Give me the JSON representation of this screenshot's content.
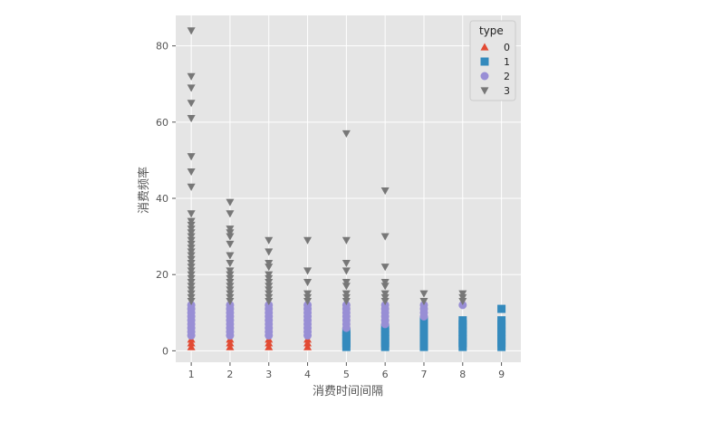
{
  "chart_data": {
    "type": "scatter",
    "title": "",
    "xlabel": "消费时间间隔",
    "ylabel": "消费频率",
    "xlim": [
      0.6,
      9.5
    ],
    "ylim": [
      -3,
      88
    ],
    "xticks": [
      1,
      2,
      3,
      4,
      5,
      6,
      7,
      8,
      9
    ],
    "yticks": [
      0,
      20,
      40,
      60,
      80
    ],
    "grid": true,
    "legend": {
      "title": "type",
      "placement": "top-right"
    },
    "series": [
      {
        "name": "0",
        "marker": "triangle-up",
        "color": "#E24A33",
        "points": [
          [
            1,
            1
          ],
          [
            1,
            2
          ],
          [
            1,
            3
          ],
          [
            2,
            1
          ],
          [
            2,
            2
          ],
          [
            2,
            3
          ],
          [
            3,
            1
          ],
          [
            3,
            2
          ],
          [
            3,
            3
          ],
          [
            4,
            1
          ],
          [
            4,
            2
          ],
          [
            4,
            3
          ]
        ]
      },
      {
        "name": "1",
        "marker": "square",
        "color": "#348ABD",
        "points": [
          [
            5,
            1
          ],
          [
            5,
            2
          ],
          [
            5,
            3
          ],
          [
            5,
            4
          ],
          [
            5,
            5
          ],
          [
            6,
            1
          ],
          [
            6,
            2
          ],
          [
            6,
            3
          ],
          [
            6,
            4
          ],
          [
            6,
            5
          ],
          [
            6,
            6
          ],
          [
            7,
            1
          ],
          [
            7,
            2
          ],
          [
            7,
            3
          ],
          [
            7,
            4
          ],
          [
            7,
            5
          ],
          [
            7,
            6
          ],
          [
            7,
            7
          ],
          [
            7,
            8
          ],
          [
            8,
            1
          ],
          [
            8,
            2
          ],
          [
            8,
            3
          ],
          [
            8,
            4
          ],
          [
            8,
            5
          ],
          [
            8,
            6
          ],
          [
            8,
            7
          ],
          [
            8,
            8
          ],
          [
            9,
            1
          ],
          [
            9,
            2
          ],
          [
            9,
            3
          ],
          [
            9,
            4
          ],
          [
            9,
            5
          ],
          [
            9,
            6
          ],
          [
            9,
            7
          ],
          [
            9,
            8
          ],
          [
            9,
            11
          ]
        ]
      },
      {
        "name": "2",
        "marker": "circle",
        "color": "#988ED5",
        "points": [
          [
            1,
            4
          ],
          [
            1,
            5
          ],
          [
            1,
            6
          ],
          [
            1,
            7
          ],
          [
            1,
            8
          ],
          [
            1,
            9
          ],
          [
            1,
            10
          ],
          [
            1,
            11
          ],
          [
            1,
            12
          ],
          [
            2,
            4
          ],
          [
            2,
            5
          ],
          [
            2,
            6
          ],
          [
            2,
            7
          ],
          [
            2,
            8
          ],
          [
            2,
            9
          ],
          [
            2,
            10
          ],
          [
            2,
            11
          ],
          [
            2,
            12
          ],
          [
            3,
            4
          ],
          [
            3,
            5
          ],
          [
            3,
            6
          ],
          [
            3,
            7
          ],
          [
            3,
            8
          ],
          [
            3,
            9
          ],
          [
            3,
            10
          ],
          [
            3,
            11
          ],
          [
            3,
            12
          ],
          [
            4,
            4
          ],
          [
            4,
            5
          ],
          [
            4,
            6
          ],
          [
            4,
            7
          ],
          [
            4,
            8
          ],
          [
            4,
            9
          ],
          [
            4,
            10
          ],
          [
            4,
            11
          ],
          [
            4,
            12
          ],
          [
            5,
            6
          ],
          [
            5,
            7
          ],
          [
            5,
            8
          ],
          [
            5,
            9
          ],
          [
            5,
            10
          ],
          [
            5,
            11
          ],
          [
            5,
            12
          ],
          [
            6,
            7
          ],
          [
            6,
            8
          ],
          [
            6,
            9
          ],
          [
            6,
            10
          ],
          [
            6,
            11
          ],
          [
            6,
            12
          ],
          [
            7,
            9
          ],
          [
            7,
            10
          ],
          [
            7,
            11
          ],
          [
            7,
            12
          ],
          [
            8,
            12
          ]
        ]
      },
      {
        "name": "3",
        "marker": "triangle-down",
        "color": "#777777",
        "points": [
          [
            1,
            13
          ],
          [
            1,
            14
          ],
          [
            1,
            15
          ],
          [
            1,
            16
          ],
          [
            1,
            17
          ],
          [
            1,
            18
          ],
          [
            1,
            19
          ],
          [
            1,
            20
          ],
          [
            1,
            21
          ],
          [
            1,
            22
          ],
          [
            1,
            23
          ],
          [
            1,
            24
          ],
          [
            1,
            25
          ],
          [
            1,
            26
          ],
          [
            1,
            27
          ],
          [
            1,
            28
          ],
          [
            1,
            29
          ],
          [
            1,
            30
          ],
          [
            1,
            31
          ],
          [
            1,
            32
          ],
          [
            1,
            33
          ],
          [
            1,
            34
          ],
          [
            1,
            36
          ],
          [
            1,
            43
          ],
          [
            1,
            47
          ],
          [
            1,
            51
          ],
          [
            1,
            61
          ],
          [
            1,
            65
          ],
          [
            1,
            69
          ],
          [
            1,
            72
          ],
          [
            1,
            84
          ],
          [
            2,
            13
          ],
          [
            2,
            14
          ],
          [
            2,
            15
          ],
          [
            2,
            16
          ],
          [
            2,
            17
          ],
          [
            2,
            18
          ],
          [
            2,
            19
          ],
          [
            2,
            20
          ],
          [
            2,
            21
          ],
          [
            2,
            23
          ],
          [
            2,
            25
          ],
          [
            2,
            28
          ],
          [
            2,
            30
          ],
          [
            2,
            31
          ],
          [
            2,
            32
          ],
          [
            2,
            36
          ],
          [
            2,
            39
          ],
          [
            3,
            13
          ],
          [
            3,
            14
          ],
          [
            3,
            15
          ],
          [
            3,
            16
          ],
          [
            3,
            17
          ],
          [
            3,
            18
          ],
          [
            3,
            19
          ],
          [
            3,
            20
          ],
          [
            3,
            22
          ],
          [
            3,
            23
          ],
          [
            3,
            26
          ],
          [
            3,
            29
          ],
          [
            4,
            13
          ],
          [
            4,
            14
          ],
          [
            4,
            15
          ],
          [
            4,
            18
          ],
          [
            4,
            21
          ],
          [
            4,
            29
          ],
          [
            5,
            13
          ],
          [
            5,
            14
          ],
          [
            5,
            15
          ],
          [
            5,
            17
          ],
          [
            5,
            18
          ],
          [
            5,
            21
          ],
          [
            5,
            23
          ],
          [
            5,
            29
          ],
          [
            5,
            57
          ],
          [
            6,
            13
          ],
          [
            6,
            14
          ],
          [
            6,
            15
          ],
          [
            6,
            17
          ],
          [
            6,
            18
          ],
          [
            6,
            22
          ],
          [
            6,
            30
          ],
          [
            6,
            42
          ],
          [
            7,
            13
          ],
          [
            7,
            15
          ],
          [
            8,
            13
          ],
          [
            8,
            14
          ],
          [
            8,
            15
          ]
        ]
      }
    ]
  }
}
